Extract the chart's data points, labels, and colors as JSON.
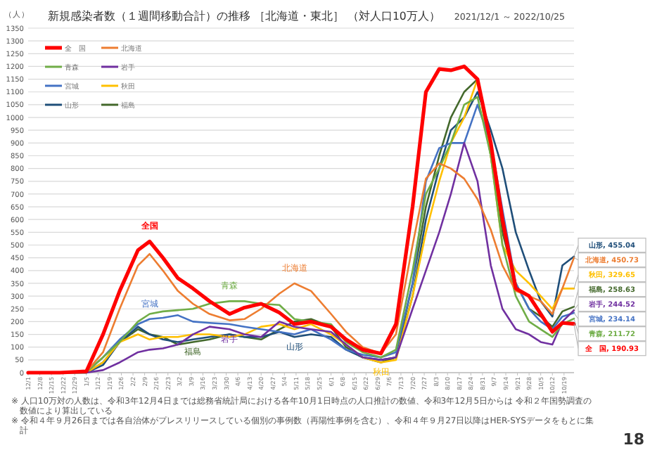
{
  "chart_data": {
    "type": "line",
    "title": "新規感染者数（１週間移動合計）の推移 ［北海道・東北］ （対人口10万人）",
    "subtitle": "2021/12/1 ～ 2022/10/25",
    "ylabel": "（人）",
    "x": [
      "2021-12-01",
      "2021-12-20",
      "2022-01-05",
      "2022-01-15",
      "2022-01-25",
      "2022-02-05",
      "2022-02-12",
      "2022-02-20",
      "2022-03-01",
      "2022-03-10",
      "2022-03-20",
      "2022-04-01",
      "2022-04-10",
      "2022-04-20",
      "2022-05-01",
      "2022-05-10",
      "2022-05-20",
      "2022-06-01",
      "2022-06-10",
      "2022-06-20",
      "2022-07-01",
      "2022-07-10",
      "2022-07-20",
      "2022-07-28",
      "2022-08-05",
      "2022-08-12",
      "2022-08-20",
      "2022-08-28",
      "2022-09-05",
      "2022-09-12",
      "2022-09-20",
      "2022-09-28",
      "2022-10-05",
      "2022-10-12",
      "2022-10-18",
      "2022-10-25"
    ],
    "series": [
      {
        "name": "全　国",
        "color": "#ff0000",
        "values": [
          0,
          0,
          5,
          150,
          320,
          480,
          514,
          450,
          370,
          330,
          280,
          230,
          255,
          270,
          235,
          190,
          200,
          180,
          130,
          90,
          75,
          190,
          650,
          1100,
          1190,
          1185,
          1200,
          1150,
          900,
          600,
          330,
          300,
          230,
          160,
          195,
          190.93
        ]
      },
      {
        "name": "北海道",
        "color": "#ed7d31",
        "values": [
          0,
          0,
          3,
          80,
          250,
          420,
          465,
          400,
          320,
          270,
          230,
          205,
          210,
          250,
          310,
          350,
          320,
          230,
          160,
          100,
          75,
          150,
          500,
          760,
          820,
          800,
          760,
          680,
          560,
          420,
          320,
          300,
          280,
          230,
          330,
          450.73
        ]
      },
      {
        "name": "青森",
        "color": "#70ad47",
        "values": [
          0,
          0,
          3,
          60,
          120,
          200,
          230,
          240,
          245,
          250,
          270,
          280,
          280,
          270,
          265,
          210,
          200,
          190,
          120,
          80,
          60,
          90,
          400,
          700,
          800,
          900,
          1050,
          1080,
          850,
          500,
          300,
          200,
          170,
          140,
          190,
          211.72
        ]
      },
      {
        "name": "岩手",
        "color": "#7030a0",
        "values": [
          0,
          0,
          0,
          10,
          40,
          80,
          90,
          95,
          110,
          150,
          180,
          170,
          150,
          140,
          200,
          180,
          170,
          160,
          110,
          60,
          50,
          60,
          250,
          400,
          550,
          700,
          900,
          750,
          420,
          250,
          170,
          150,
          120,
          110,
          200,
          244.52
        ]
      },
      {
        "name": "宮城",
        "color": "#4472c4",
        "values": [
          0,
          0,
          2,
          60,
          130,
          190,
          210,
          215,
          225,
          200,
          195,
          190,
          180,
          170,
          160,
          150,
          170,
          130,
          90,
          70,
          60,
          80,
          350,
          750,
          880,
          900,
          900,
          1050,
          900,
          640,
          350,
          250,
          200,
          170,
          220,
          234.14
        ]
      },
      {
        "name": "秋田",
        "color": "#ffc000",
        "values": [
          0,
          0,
          0,
          40,
          120,
          150,
          130,
          140,
          140,
          150,
          150,
          140,
          150,
          180,
          190,
          170,
          190,
          150,
          110,
          60,
          40,
          50,
          300,
          550,
          750,
          900,
          1000,
          1150,
          850,
          500,
          400,
          350,
          300,
          250,
          330,
          329.65
        ]
      },
      {
        "name": "山形",
        "color": "#1f4e79",
        "values": [
          0,
          0,
          0,
          30,
          120,
          180,
          150,
          130,
          120,
          130,
          140,
          150,
          140,
          140,
          160,
          140,
          150,
          140,
          90,
          60,
          50,
          60,
          300,
          600,
          800,
          950,
          1000,
          1100,
          950,
          800,
          550,
          400,
          280,
          220,
          420,
          455.04
        ]
      },
      {
        "name": "福島",
        "color": "#43682b",
        "values": [
          0,
          0,
          0,
          40,
          120,
          170,
          150,
          140,
          110,
          120,
          130,
          150,
          140,
          130,
          170,
          200,
          210,
          180,
          100,
          60,
          40,
          60,
          350,
          650,
          850,
          1000,
          1100,
          1150,
          850,
          550,
          350,
          250,
          220,
          180,
          240,
          258.63
        ]
      }
    ],
    "ylim": [
      0,
      1350
    ],
    "yticks": [
      0,
      50,
      100,
      150,
      200,
      250,
      300,
      350,
      400,
      450,
      500,
      550,
      600,
      650,
      700,
      750,
      800,
      850,
      900,
      950,
      1000,
      1050,
      1100,
      1150,
      1200,
      1250,
      1300,
      1350
    ],
    "xlim": [
      "2021-12-01",
      "2022-10-25"
    ],
    "xticks": [
      {
        "value": "2021-12-01",
        "label": "12/1"
      },
      {
        "value": "2021-12-08",
        "label": "12/8"
      },
      {
        "value": "2021-12-15",
        "label": "12/15"
      },
      {
        "value": "2021-12-22",
        "label": "12/22"
      },
      {
        "value": "2021-12-29",
        "label": "12/29"
      },
      {
        "value": "2022-01-05",
        "label": "1/5"
      },
      {
        "value": "2022-01-12",
        "label": "1/12"
      },
      {
        "value": "2022-01-19",
        "label": "1/19"
      },
      {
        "value": "2022-01-26",
        "label": "1/26"
      },
      {
        "value": "2022-02-02",
        "label": "2/2"
      },
      {
        "value": "2022-02-09",
        "label": "2/9"
      },
      {
        "value": "2022-02-16",
        "label": "2/16"
      },
      {
        "value": "2022-02-23",
        "label": "2/23"
      },
      {
        "value": "2022-03-02",
        "label": "3/2"
      },
      {
        "value": "2022-03-09",
        "label": "3/9"
      },
      {
        "value": "2022-03-16",
        "label": "3/16"
      },
      {
        "value": "2022-03-23",
        "label": "3/23"
      },
      {
        "value": "2022-03-30",
        "label": "3/30"
      },
      {
        "value": "2022-04-06",
        "label": "4/6"
      },
      {
        "value": "2022-04-13",
        "label": "4/13"
      },
      {
        "value": "2022-04-20",
        "label": "4/20"
      },
      {
        "value": "2022-04-27",
        "label": "4/27"
      },
      {
        "value": "2022-05-04",
        "label": "5/4"
      },
      {
        "value": "2022-05-11",
        "label": "5/11"
      },
      {
        "value": "2022-05-18",
        "label": "5/18"
      },
      {
        "value": "2022-05-25",
        "label": "5/25"
      },
      {
        "value": "2022-06-01",
        "label": "6/1"
      },
      {
        "value": "2022-06-08",
        "label": "6/8"
      },
      {
        "value": "2022-06-15",
        "label": "6/15"
      },
      {
        "value": "2022-06-22",
        "label": "6/22"
      },
      {
        "value": "2022-06-29",
        "label": "6/29"
      },
      {
        "value": "2022-07-06",
        "label": "7/6"
      },
      {
        "value": "2022-07-13",
        "label": "7/13"
      },
      {
        "value": "2022-07-20",
        "label": "7/20"
      },
      {
        "value": "2022-07-27",
        "label": "7/27"
      },
      {
        "value": "2022-08-03",
        "label": "8/3"
      },
      {
        "value": "2022-08-10",
        "label": "8/10"
      },
      {
        "value": "2022-08-17",
        "label": "8/17"
      },
      {
        "value": "2022-08-24",
        "label": "8/24"
      },
      {
        "value": "2022-08-31",
        "label": "8/31"
      },
      {
        "value": "2022-09-07",
        "label": "9/7"
      },
      {
        "value": "2022-09-14",
        "label": "9/14"
      },
      {
        "value": "2022-09-21",
        "label": "9/21"
      },
      {
        "value": "2022-09-28",
        "label": "9/28"
      },
      {
        "value": "2022-10-05",
        "label": "10/5"
      },
      {
        "value": "2022-10-12",
        "label": "10/12"
      },
      {
        "value": "2022-10-19",
        "label": "10/19"
      }
    ],
    "grid": "y",
    "legend": "top left",
    "marker": "none",
    "line_style": "solid",
    "annotations": [
      {
        "text": "全国",
        "x": "2022-02-12",
        "y": 514
      },
      {
        "text": "北海道",
        "x": "2022-05-10",
        "y": 350
      },
      {
        "text": "青森",
        "x": "2022-04-01",
        "y": 280
      },
      {
        "text": "岩手",
        "x": "2022-04-01",
        "y": 170
      },
      {
        "text": "宮城",
        "x": "2022-02-12",
        "y": 210
      },
      {
        "text": "秋田",
        "x": "2022-07-01",
        "y": 40
      },
      {
        "text": "山形",
        "x": "2022-05-10",
        "y": 140
      },
      {
        "text": "福島",
        "x": "2022-03-10",
        "y": 120
      },
      {
        "text": "山形, 455.04",
        "x": "2022-10-25",
        "y": 455.04
      },
      {
        "text": "北海道, 450.73",
        "x": "2022-10-25",
        "y": 450.73
      },
      {
        "text": "秋田, 329.65",
        "x": "2022-10-25",
        "y": 329.65
      },
      {
        "text": "福島, 258.63",
        "x": "2022-10-25",
        "y": 258.63
      },
      {
        "text": "岩手, 244.52",
        "x": "2022-10-25",
        "y": 244.52
      },
      {
        "text": "宮城, 234.14",
        "x": "2022-10-25",
        "y": 234.14
      },
      {
        "text": "青森, 211.72",
        "x": "2022-10-25",
        "y": 211.72
      },
      {
        "text": "全　国, 190.93",
        "x": "2022-10-25",
        "y": 190.93
      },
      "※ 人口10万対の人数は、令和3年12月4日までは総務省統計局における各年10月1日時点の人口推計の数値、令和3年12月5日からは 令和２年国勢調査の数値により算出している",
      "※ 令和４年９月26日までは各自治体がプレスリリースしている個別の事例数（再陽性事例を含む）、令和４年９月27日以降はHER-SYSデータをもとに集計",
      "18"
    ]
  }
}
